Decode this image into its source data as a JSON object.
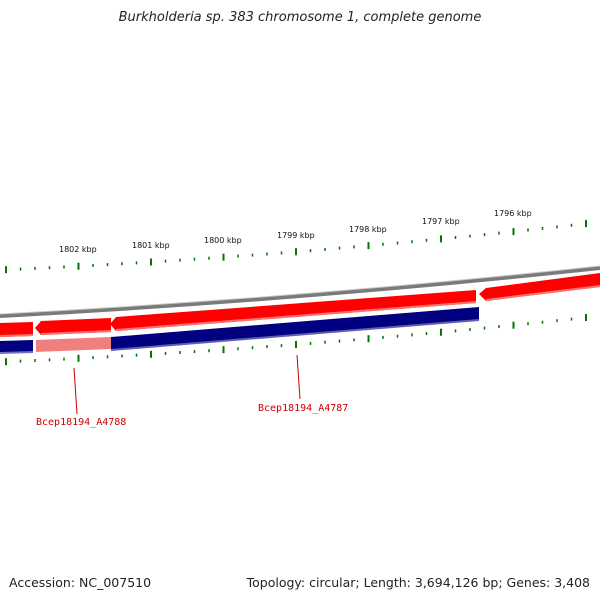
{
  "title": "Burkholderia sp. 383 chromosome 1, complete genome",
  "footer": {
    "accession": "Accession: NC_007510",
    "summary": "Topology: circular; Length: 3,694,126 bp; Genes: 3,408"
  },
  "colors": {
    "forward_strand": "#ee0000",
    "reverse_strand": "#000080",
    "ticks": "#007700",
    "backbone": "#808080",
    "gene_label": "#cc0000"
  },
  "scale_labels": [
    "1802 kbp",
    "1801 kbp",
    "1800 kbp",
    "1799 kbp",
    "1798 kbp",
    "1797 kbp",
    "1796 kbp"
  ],
  "gene_labels": [
    "Bcep18194_A4788",
    "Bcep18194_A4787"
  ]
}
